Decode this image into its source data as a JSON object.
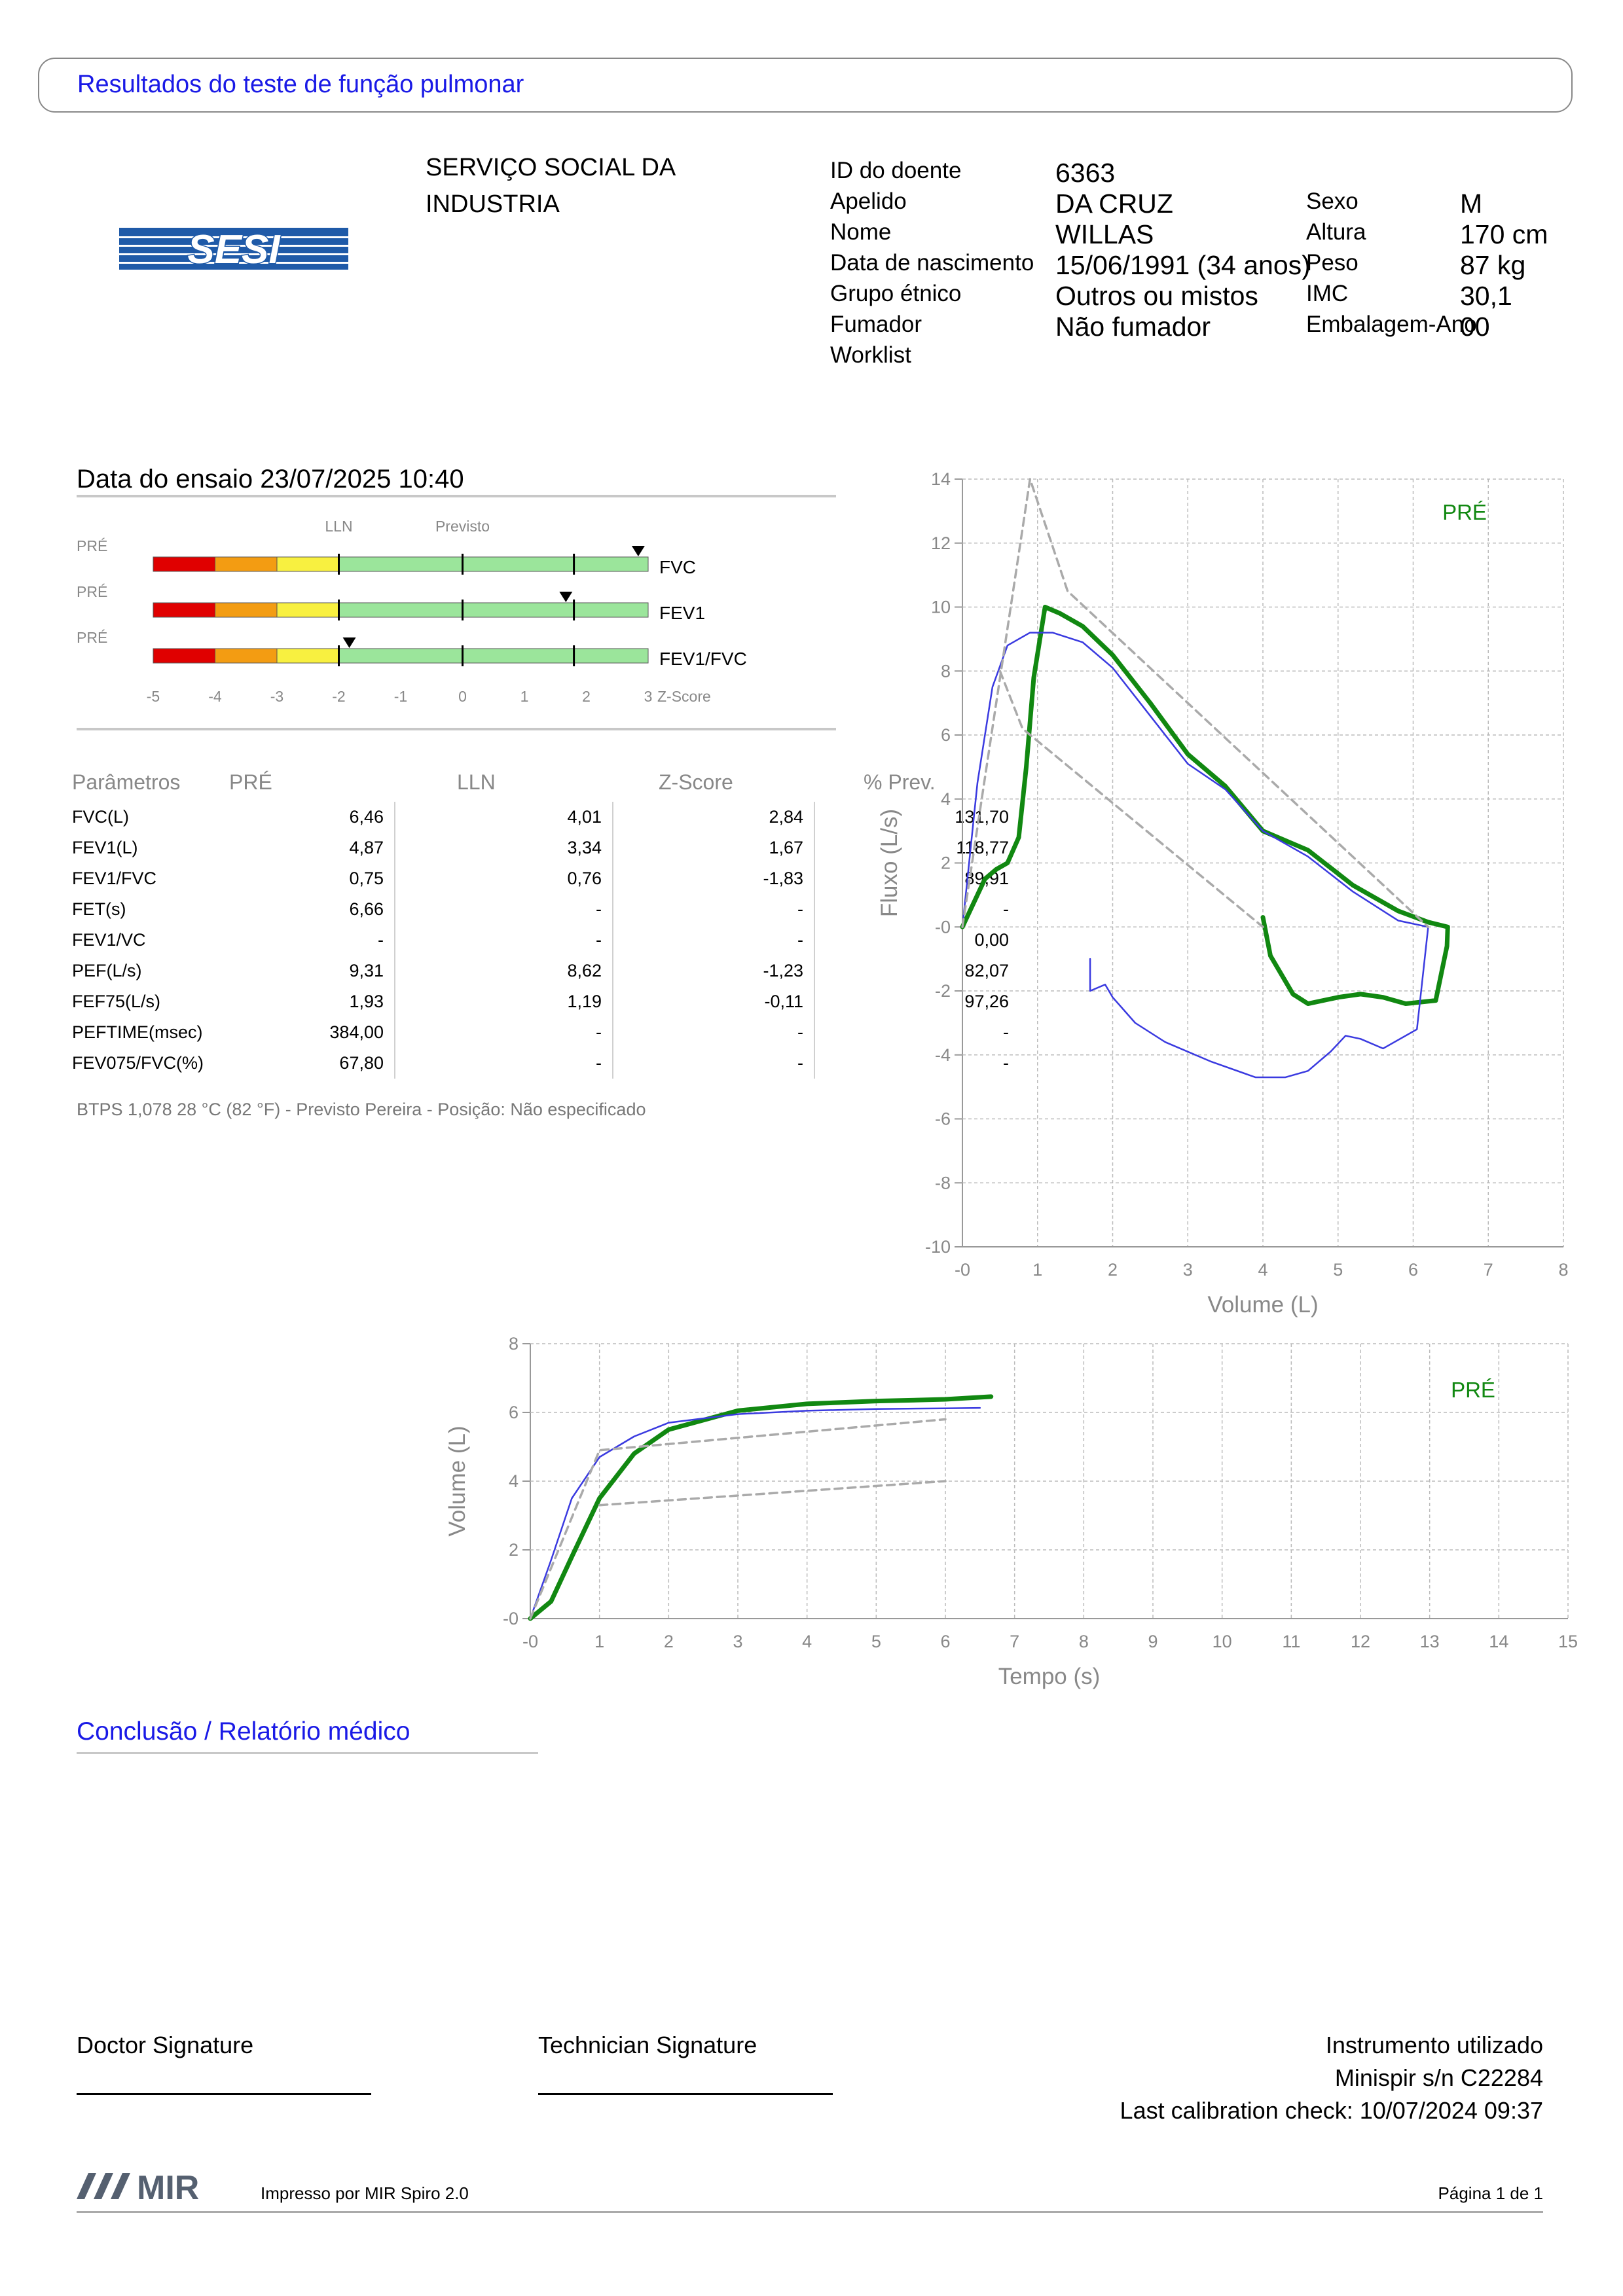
{
  "header": {
    "title": "Resultados do teste de função pulmonar"
  },
  "logo": {
    "text": "SESI",
    "color": "#1f5aa8"
  },
  "organization": {
    "line1": "SERVIÇO SOCIAL DA",
    "line2": "INDUSTRIA"
  },
  "patient": {
    "id_label": "ID do doente",
    "id": "6363",
    "surname_label": "Apelido",
    "surname": "DA CRUZ",
    "name_label": "Nome",
    "name": "WILLAS",
    "dob_label": "Data de nascimento",
    "dob": "15/06/1991 (34 anos)",
    "ethnic_label": "Grupo étnico",
    "ethnic": "Outros ou mistos",
    "smoker_label": "Fumador",
    "smoker": "Não fumador",
    "worklist_label": "Worklist",
    "sex_label": "Sexo",
    "sex": "M",
    "height_label": "Altura",
    "height": "170 cm",
    "weight_label": "Peso",
    "weight": "87 kg",
    "bmi_label": "IMC",
    "bmi": "30,1",
    "pack_label": "Embalagem-Ano",
    "pack": "00"
  },
  "test_date": "Data do ensaio 23/07/2025 10:40",
  "zscore": {
    "lln_label": "LLN",
    "pred_label": "Previsto",
    "axis_suffix": "Z-Score",
    "ticks": [
      "-5",
      "-4",
      "-3",
      "-2",
      "-1",
      "0",
      "1",
      "2",
      "3"
    ],
    "rows": [
      {
        "tag": "PRÉ",
        "name": "FVC",
        "z": 2.84
      },
      {
        "tag": "PRÉ",
        "name": "FEV1",
        "z": 1.67
      },
      {
        "tag": "PRÉ",
        "name": "FEV1/FVC",
        "z": -1.83
      }
    ]
  },
  "params": {
    "headers": [
      "Parâmetros",
      "PRÉ",
      "LLN",
      "Z-Score",
      "% Prev."
    ],
    "rows": [
      [
        "FVC(L)",
        "6,46",
        "4,01",
        "2,84",
        "131,70"
      ],
      [
        "FEV1(L)",
        "4,87",
        "3,34",
        "1,67",
        "118,77"
      ],
      [
        "FEV1/FVC",
        "0,75",
        "0,76",
        "-1,83",
        "89,91"
      ],
      [
        "FET(s)",
        "6,66",
        "-",
        "-",
        "-"
      ],
      [
        "FEV1/VC",
        "-",
        "-",
        "-",
        "0,00"
      ],
      [
        "PEF(L/s)",
        "9,31",
        "8,62",
        "-1,23",
        "82,07"
      ],
      [
        "FEF75(L/s)",
        "1,93",
        "1,19",
        "-0,11",
        "97,26"
      ],
      [
        "PEFTIME(msec)",
        "384,00",
        "-",
        "-",
        "-"
      ],
      [
        "FEV075/FVC(%)",
        "67,80",
        "-",
        "-",
        "-"
      ]
    ]
  },
  "note": "BTPS 1,078 28 °C (82 °F) - Previsto Pereira - Posição: Não especificado",
  "chart_data": [
    {
      "type": "line",
      "xlabel": "Volume (L)",
      "ylabel": "Fluxo (L/s)",
      "xlim": [
        0,
        8
      ],
      "ylim": [
        -10,
        14
      ],
      "xticks": [
        "-0",
        "1",
        "2",
        "3",
        "4",
        "5",
        "6",
        "7",
        "8"
      ],
      "yticks": [
        "-10",
        "-8",
        "-6",
        "-4",
        "-2",
        "-0",
        "2",
        "4",
        "6",
        "8",
        "10",
        "12",
        "14"
      ],
      "annotation": "PRÉ",
      "series": [
        {
          "color": "#118811",
          "points": [
            [
              0,
              0
            ],
            [
              0.3,
              1.5
            ],
            [
              0.45,
              1.8
            ],
            [
              0.6,
              2.0
            ],
            [
              0.75,
              2.8
            ],
            [
              0.85,
              5.0
            ],
            [
              0.95,
              7.8
            ],
            [
              1.1,
              10.0
            ],
            [
              1.3,
              9.8
            ],
            [
              1.6,
              9.4
            ],
            [
              2.0,
              8.5
            ],
            [
              2.5,
              7.0
            ],
            [
              3.0,
              5.4
            ],
            [
              3.5,
              4.4
            ],
            [
              4.0,
              3.0
            ],
            [
              4.6,
              2.4
            ],
            [
              5.2,
              1.3
            ],
            [
              5.8,
              0.5
            ],
            [
              6.2,
              0.15
            ],
            [
              6.46,
              0
            ],
            [
              6.45,
              -0.6
            ],
            [
              6.3,
              -2.3
            ],
            [
              5.9,
              -2.4
            ],
            [
              5.6,
              -2.2
            ],
            [
              5.3,
              -2.1
            ],
            [
              5.0,
              -2.2
            ],
            [
              4.6,
              -2.4
            ],
            [
              4.4,
              -2.1
            ],
            [
              4.1,
              -0.9
            ],
            [
              4.0,
              0.3
            ]
          ]
        },
        {
          "color": "#3a3ae0",
          "points": [
            [
              0,
              0
            ],
            [
              0.2,
              4.5
            ],
            [
              0.4,
              7.5
            ],
            [
              0.6,
              8.8
            ],
            [
              0.9,
              9.2
            ],
            [
              1.2,
              9.2
            ],
            [
              1.6,
              8.9
            ],
            [
              2.0,
              8.1
            ],
            [
              2.5,
              6.6
            ],
            [
              3.0,
              5.1
            ],
            [
              3.5,
              4.3
            ],
            [
              4.0,
              3.0
            ],
            [
              4.6,
              2.2
            ],
            [
              5.2,
              1.1
            ],
            [
              5.8,
              0.2
            ],
            [
              6.2,
              0
            ],
            [
              6.05,
              -3.2
            ],
            [
              5.6,
              -3.8
            ],
            [
              5.3,
              -3.5
            ],
            [
              5.1,
              -3.4
            ],
            [
              4.9,
              -3.9
            ],
            [
              4.6,
              -4.5
            ],
            [
              4.3,
              -4.7
            ],
            [
              3.9,
              -4.7
            ],
            [
              3.3,
              -4.2
            ],
            [
              2.7,
              -3.6
            ],
            [
              2.3,
              -3.0
            ],
            [
              2.0,
              -2.2
            ],
            [
              1.9,
              -1.8
            ],
            [
              1.7,
              -2.0
            ],
            [
              1.7,
              -1.0
            ]
          ]
        },
        {
          "color": "#aaaaaa",
          "dashed": true,
          "points": [
            [
              0,
              0
            ],
            [
              0.9,
              14
            ],
            [
              1.4,
              10.5
            ],
            [
              6.2,
              0
            ]
          ]
        },
        {
          "color": "#aaaaaa",
          "dashed": true,
          "points": [
            [
              0.5,
              8
            ],
            [
              0.8,
              6.2
            ],
            [
              4.0,
              0
            ]
          ]
        }
      ]
    },
    {
      "type": "line",
      "xlabel": "Tempo (s)",
      "ylabel": "Volume (L)",
      "xlim": [
        0,
        15
      ],
      "ylim": [
        0,
        8
      ],
      "xticks": [
        "-0",
        "1",
        "2",
        "3",
        "4",
        "5",
        "6",
        "7",
        "8",
        "9",
        "10",
        "11",
        "12",
        "13",
        "14",
        "15"
      ],
      "yticks": [
        "-0",
        "2",
        "4",
        "6",
        "8"
      ],
      "annotation": "PRÉ",
      "series": [
        {
          "color": "#118811",
          "points": [
            [
              0,
              0
            ],
            [
              0.3,
              0.5
            ],
            [
              0.6,
              1.8
            ],
            [
              1.0,
              3.5
            ],
            [
              1.5,
              4.8
            ],
            [
              2.0,
              5.5
            ],
            [
              3.0,
              6.05
            ],
            [
              4.0,
              6.25
            ],
            [
              5.0,
              6.33
            ],
            [
              6.0,
              6.38
            ],
            [
              6.66,
              6.46
            ]
          ]
        },
        {
          "color": "#3a3ae0",
          "points": [
            [
              0,
              0
            ],
            [
              0.3,
              1.7
            ],
            [
              0.6,
              3.5
            ],
            [
              1.0,
              4.7
            ],
            [
              1.5,
              5.3
            ],
            [
              2.0,
              5.7
            ],
            [
              3.0,
              5.95
            ],
            [
              4.0,
              6.05
            ],
            [
              5.0,
              6.1
            ],
            [
              6.0,
              6.12
            ],
            [
              6.5,
              6.13
            ]
          ]
        },
        {
          "color": "#aaaaaa",
          "dashed": true,
          "points": [
            [
              0,
              0
            ],
            [
              1.0,
              4.9
            ],
            [
              6.0,
              5.8
            ]
          ]
        },
        {
          "color": "#aaaaaa",
          "dashed": true,
          "points": [
            [
              1.0,
              3.3
            ],
            [
              6.0,
              4.0
            ]
          ]
        }
      ]
    }
  ],
  "conclusion": {
    "title": "Conclusão / Relatório médico"
  },
  "signatures": {
    "doctor": "Doctor Signature",
    "technician": "Technician Signature"
  },
  "instrument": {
    "line1": "Instrumento utilizado",
    "line2": "Minispir s/n C22284",
    "line3": "Last calibration check: 10/07/2024 09:37"
  },
  "footer": {
    "brand": "MIR",
    "printed": "Impresso por MIR Spiro 2.0",
    "page": "Página 1 de 1"
  }
}
